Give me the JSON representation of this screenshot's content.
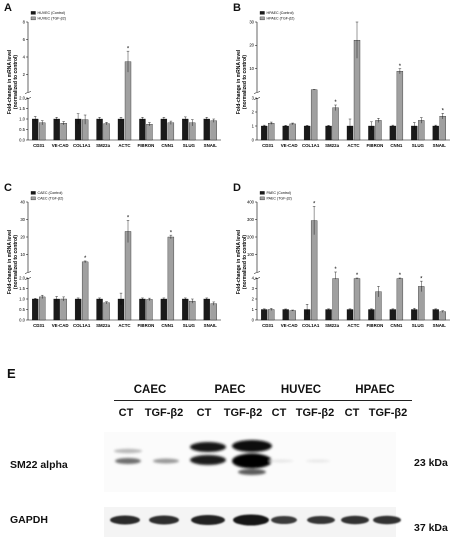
{
  "chart_data": [
    {
      "panel": "A",
      "type": "bar",
      "axis_break": {
        "lower": [
          0,
          2
        ],
        "upper": [
          2,
          8
        ]
      },
      "ylabel": "Fold-change in mRNA level\n(normalized to control)",
      "yticks_lower": [
        "0.0",
        "0.5",
        "1.0",
        "1.5",
        "2.0"
      ],
      "yticks_upper": [
        "2",
        "4",
        "6",
        "8"
      ],
      "categories": [
        "CD31",
        "VE-CAD",
        "COL1A1",
        "SM22a",
        "ACTC",
        "FIBRON",
        "CNN1",
        "SLUG",
        "SNAIL"
      ],
      "series": [
        {
          "name": "HUVEC (Control)",
          "color": "#1a1a1a",
          "values": [
            1.0,
            1.0,
            1.0,
            1.0,
            1.0,
            1.0,
            1.0,
            1.0,
            1.0
          ],
          "errors": [
            0.12,
            0.08,
            0.25,
            0.08,
            0.08,
            0.08,
            0.08,
            0.1,
            0.08
          ]
        },
        {
          "name": "HUVEC (TGF-β2)",
          "color": "#a0a0a0",
          "values": [
            0.82,
            0.8,
            0.97,
            0.78,
            4.6,
            0.75,
            0.82,
            0.82,
            0.92
          ],
          "errors": [
            0.1,
            0.08,
            0.22,
            0.06,
            0.9,
            0.08,
            0.08,
            0.15,
            0.08
          ]
        }
      ],
      "significant": [
        false,
        false,
        false,
        false,
        true,
        false,
        false,
        false,
        false
      ]
    },
    {
      "panel": "B",
      "type": "bar",
      "axis_break": {
        "lower": [
          0,
          3
        ],
        "upper": [
          3,
          30
        ]
      },
      "ylabel": "Fold-change in mRNA level\n(normalized to control)",
      "yticks_lower": [
        "0",
        "1",
        "2",
        "3"
      ],
      "yticks_upper": [
        "10",
        "20",
        "30"
      ],
      "categories": [
        "CD31",
        "VE-CAD",
        "COL1A1",
        "SM22a",
        "ACTC",
        "FIBRON",
        "CNN1",
        "SLUG",
        "SNAIL"
      ],
      "series": [
        {
          "name": "HPAEC (Control)",
          "color": "#1a1a1a",
          "values": [
            1.0,
            1.0,
            1.0,
            1.0,
            1.0,
            1.0,
            1.0,
            1.0,
            1.0
          ],
          "errors": [
            0.06,
            0.05,
            0.05,
            0.05,
            0.5,
            0.3,
            0.06,
            0.25,
            0.06
          ]
        },
        {
          "name": "HPAEC (TGF-β2)",
          "color": "#a0a0a0",
          "values": [
            1.2,
            1.15,
            3.9,
            2.3,
            23,
            1.4,
            11,
            1.4,
            1.7
          ],
          "errors": [
            0.08,
            0.06,
            0.08,
            0.2,
            7,
            0.15,
            1,
            0.2,
            0.2
          ]
        }
      ],
      "significant": [
        false,
        false,
        false,
        true,
        false,
        false,
        true,
        false,
        true
      ]
    },
    {
      "panel": "C",
      "type": "bar",
      "axis_break": {
        "lower": [
          0,
          2
        ],
        "upper": [
          2,
          40
        ]
      },
      "ylabel": "Fold-change in mRNA level\n(normalized to control)",
      "yticks_lower": [
        "0.0",
        "0.5",
        "1.0",
        "1.5",
        "2.0"
      ],
      "yticks_upper": [
        "10",
        "20",
        "30",
        "40"
      ],
      "categories": [
        "CD31",
        "VE-CAD",
        "COL1A1",
        "SM22a",
        "ACTC",
        "FIBRON",
        "CNN1",
        "SLUG",
        "SNAIL"
      ],
      "series": [
        {
          "name": "CAEC (Control)",
          "color": "#1a1a1a",
          "values": [
            1.0,
            1.0,
            1.0,
            1.0,
            1.0,
            1.0,
            1.0,
            1.0,
            1.0
          ],
          "errors": [
            0.03,
            0.12,
            0.05,
            0.05,
            0.28,
            0.05,
            0.05,
            0.05,
            0.05
          ]
        },
        {
          "name": "CAEC (TGF-β2)",
          "color": "#a0a0a0",
          "values": [
            1.1,
            1.0,
            7.5,
            0.82,
            24,
            0.98,
            21,
            0.9,
            0.78
          ],
          "errors": [
            0.08,
            0.1,
            0.5,
            0.05,
            6,
            0.06,
            1,
            0.1,
            0.08
          ]
        }
      ],
      "significant": [
        false,
        false,
        true,
        false,
        true,
        false,
        true,
        false,
        false
      ]
    },
    {
      "panel": "D",
      "type": "bar",
      "axis_break": {
        "lower": [
          0,
          4
        ],
        "upper": [
          4,
          400
        ]
      },
      "ylabel": "Fold-change in mRNA level\n(normalized to control)",
      "yticks_lower": [
        "0",
        "1",
        "2",
        "3",
        "4"
      ],
      "yticks_upper": [
        "100",
        "200",
        "300",
        "400"
      ],
      "categories": [
        "CD31",
        "VE-CAD",
        "COL1A1",
        "SM22a",
        "ACTC",
        "FIBRON",
        "CNN1",
        "SLUG",
        "SNAIL"
      ],
      "series": [
        {
          "name": "PAEC (Control)",
          "color": "#1a1a1a",
          "values": [
            1.0,
            1.0,
            1.0,
            1.0,
            1.0,
            1.0,
            1.0,
            1.0,
            1.0
          ],
          "errors": [
            0.06,
            0.05,
            0.5,
            0.06,
            0.06,
            0.06,
            0.06,
            0.12,
            0.06
          ]
        },
        {
          "name": "PAEC (TGF-β2)",
          "color": "#a0a0a0",
          "values": [
            1.0,
            0.9,
            295,
            3.95,
            3.95,
            2.7,
            3.95,
            3.2,
            0.8
          ],
          "errors": [
            0.1,
            0.05,
            80,
            0.06,
            0.05,
            0.5,
            0.05,
            0.5,
            0.08
          ]
        }
      ],
      "significant": [
        false,
        false,
        true,
        true,
        true,
        false,
        true,
        true,
        false
      ]
    }
  ],
  "panel_labels": {
    "a": "A",
    "b": "B",
    "c": "C",
    "d": "D",
    "e": "E"
  },
  "blot": {
    "groups": [
      "CAEC",
      "PAEC",
      "HUVEC",
      "HPAEC"
    ],
    "lanes": [
      "CT",
      "TGF-β2",
      "CT",
      "TGF-β2",
      "CT",
      "TGF-β2",
      "CT",
      "TGF-β2"
    ],
    "rows": [
      {
        "label": "SM22 alpha",
        "kda": "23 kDa"
      },
      {
        "label": "GAPDH",
        "kda": "37 kDa"
      }
    ]
  }
}
